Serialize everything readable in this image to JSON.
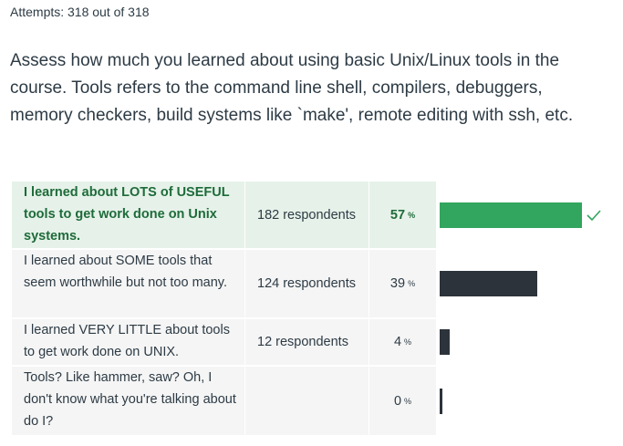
{
  "attempts_text": "Attempts: 318 out of 318",
  "question_text": "Assess how much you learned about using basic Unix/Linux tools in the course. Tools refers to the command line shell, compilers, debuggers, memory checkers, build systems like `make', remote editing with ssh, etc.",
  "percent_sign": "%",
  "colors": {
    "correct_bg": "#e6f2e9",
    "correct_text": "#1e6b3a",
    "correct_bar": "#32a55e",
    "bar": "#2d333b",
    "cell_bg": "#f5f5f5"
  },
  "answers": [
    {
      "text": "I learned about LOTS of USEFUL tools to get work done on Unix systems.",
      "respondents": "182 respondents",
      "percent": "57",
      "value": 57,
      "correct": true,
      "icon": "checkmark-icon"
    },
    {
      "text": "I learned about SOME tools that seem worthwhile but not too many.",
      "respondents": "124 respondents",
      "percent": "39",
      "value": 39,
      "correct": false
    },
    {
      "text": "I learned VERY LITTLE about tools to get work done on UNIX.",
      "respondents": "12 respondents",
      "percent": "4",
      "value": 4,
      "correct": false
    },
    {
      "text": "Tools? Like hammer, saw? Oh, I don't know what you're talking about do I?",
      "respondents": "",
      "percent": "0",
      "value": 0,
      "correct": false
    }
  ]
}
